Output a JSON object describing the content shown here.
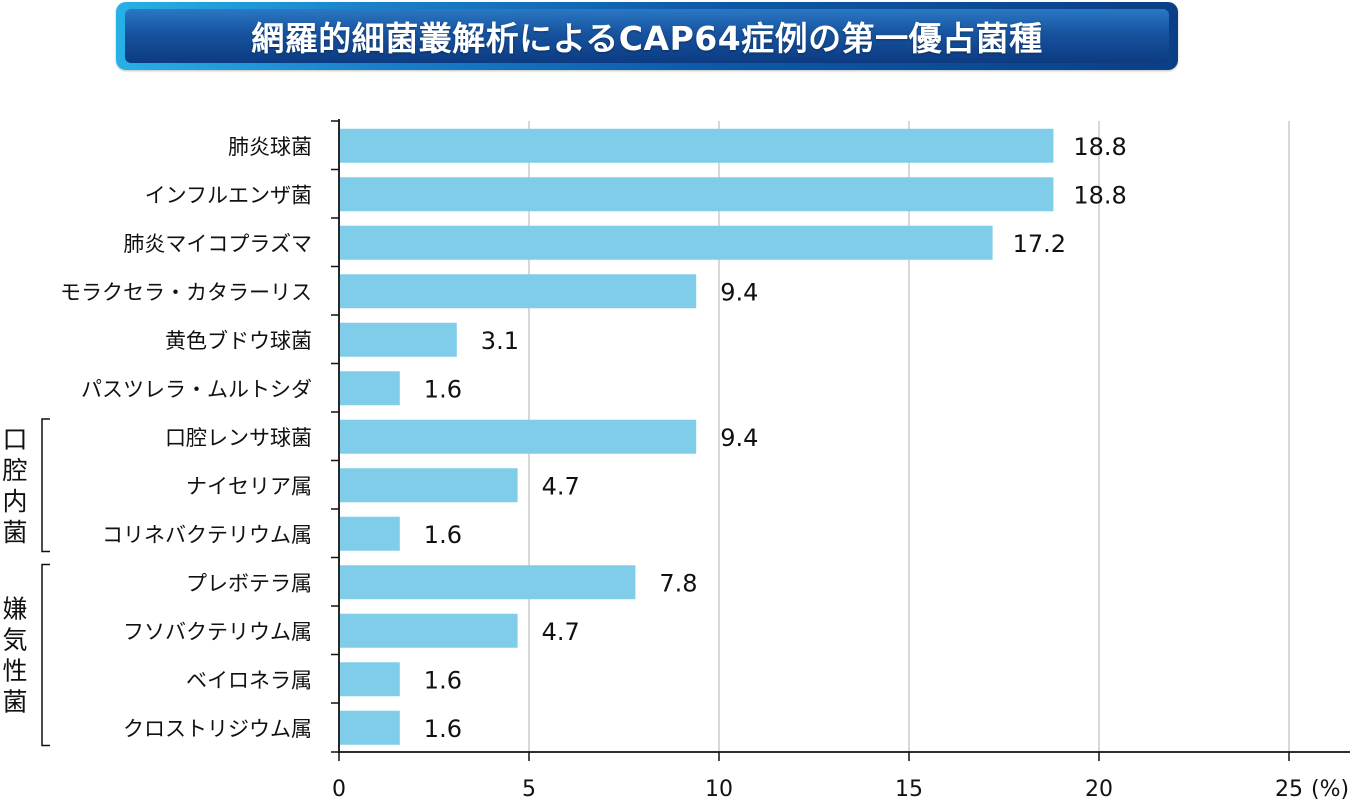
{
  "chart_data": {
    "type": "bar",
    "orientation": "horizontal",
    "title": "網羅的細菌叢解析によるCAP64症例の第一優占菌種",
    "xlabel": "",
    "ylabel": "",
    "unit_label": "(%)",
    "xlim": [
      0,
      25
    ],
    "x_ticks": [
      0,
      5,
      10,
      15,
      20,
      25
    ],
    "grid": true,
    "bar_color": "#80cdea",
    "categories": [
      "肺炎球菌",
      "インフルエンザ菌",
      "肺炎マイコプラズマ",
      "モラクセラ・カタラーリス",
      "黄色ブドウ球菌",
      "パスツレラ・ムルトシダ",
      "口腔レンサ球菌",
      "ナイセリア属",
      "コリネバクテリウム属",
      "プレボテラ属",
      "フソバクテリウム属",
      "ベイロネラ属",
      "クロストリジウム属"
    ],
    "values": [
      18.8,
      18.8,
      17.2,
      9.4,
      3.1,
      1.6,
      9.4,
      4.7,
      1.6,
      7.8,
      4.7,
      1.6,
      1.6
    ],
    "value_labels": [
      "18.8",
      "18.8",
      "17.2",
      "9.4",
      "3.1",
      "1.6",
      "9.4",
      "4.7",
      "1.6",
      "7.8",
      "4.7",
      "1.6",
      "1.6"
    ],
    "groups": [
      {
        "name": "口腔内菌",
        "first_index": 6,
        "last_index": 8
      },
      {
        "name": "嫌気性菌",
        "first_index": 9,
        "last_index": 12
      }
    ]
  }
}
